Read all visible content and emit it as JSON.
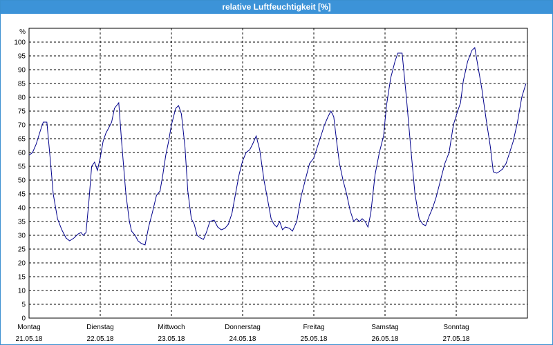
{
  "window": {
    "title": "relative Luftfeuchtigkeit [%]"
  },
  "colors": {
    "title_bar": "#3c93d8",
    "series_line": "#00008b",
    "grid": "#000000"
  },
  "chart_data": {
    "type": "line",
    "title": "relative Luftfeuchtigkeit [%]",
    "ylabel": "%",
    "xlabel": "",
    "ylim": [
      0,
      105
    ],
    "yticks": [
      0,
      5,
      10,
      15,
      20,
      25,
      30,
      35,
      40,
      45,
      50,
      55,
      60,
      65,
      70,
      75,
      80,
      85,
      90,
      95,
      100
    ],
    "xlim": [
      0,
      7.0
    ],
    "grid": true,
    "x_unit": "days since Montag 21.05.18 00:00",
    "day_labels": [
      {
        "x": 0,
        "day": "Montag",
        "date": "21.05.18"
      },
      {
        "x": 1,
        "day": "Dienstag",
        "date": "22.05.18"
      },
      {
        "x": 2,
        "day": "Mittwoch",
        "date": "23.05.18"
      },
      {
        "x": 3,
        "day": "Donnerstag",
        "date": "24.05.18"
      },
      {
        "x": 4,
        "day": "Freitag",
        "date": "25.05.18"
      },
      {
        "x": 5,
        "day": "Samstag",
        "date": "26.05.18"
      },
      {
        "x": 6,
        "day": "Sonntag",
        "date": "27.05.18"
      }
    ],
    "series": [
      {
        "points": [
          [
            0.0,
            59
          ],
          [
            0.05,
            60
          ],
          [
            0.1,
            63
          ],
          [
            0.16,
            68
          ],
          [
            0.2,
            71
          ],
          [
            0.25,
            71
          ],
          [
            0.3,
            57
          ],
          [
            0.34,
            45
          ],
          [
            0.4,
            36
          ],
          [
            0.46,
            32
          ],
          [
            0.52,
            29
          ],
          [
            0.57,
            28
          ],
          [
            0.63,
            29
          ],
          [
            0.69,
            30.5
          ],
          [
            0.73,
            31
          ],
          [
            0.76,
            30
          ],
          [
            0.8,
            31
          ],
          [
            0.84,
            42
          ],
          [
            0.88,
            55
          ],
          [
            0.92,
            56.5
          ],
          [
            0.96,
            53.5
          ],
          [
            1.0,
            58
          ],
          [
            1.04,
            64
          ],
          [
            1.08,
            67
          ],
          [
            1.12,
            69
          ],
          [
            1.16,
            71
          ],
          [
            1.2,
            76
          ],
          [
            1.26,
            78
          ],
          [
            1.3,
            64
          ],
          [
            1.36,
            45
          ],
          [
            1.41,
            35
          ],
          [
            1.44,
            31.5
          ],
          [
            1.49,
            30
          ],
          [
            1.53,
            28
          ],
          [
            1.58,
            27
          ],
          [
            1.63,
            26.5
          ],
          [
            1.68,
            33
          ],
          [
            1.73,
            38
          ],
          [
            1.79,
            44.5
          ],
          [
            1.84,
            46
          ],
          [
            1.88,
            52
          ],
          [
            1.92,
            59
          ],
          [
            1.96,
            64
          ],
          [
            2.0,
            70
          ],
          [
            2.06,
            76
          ],
          [
            2.1,
            77
          ],
          [
            2.14,
            74
          ],
          [
            2.19,
            62
          ],
          [
            2.23,
            46
          ],
          [
            2.28,
            36
          ],
          [
            2.32,
            34
          ],
          [
            2.36,
            30
          ],
          [
            2.41,
            29
          ],
          [
            2.45,
            28.5
          ],
          [
            2.49,
            31
          ],
          [
            2.54,
            35
          ],
          [
            2.6,
            35.5
          ],
          [
            2.65,
            33
          ],
          [
            2.7,
            32
          ],
          [
            2.75,
            32.5
          ],
          [
            2.8,
            34
          ],
          [
            2.85,
            38
          ],
          [
            2.9,
            45
          ],
          [
            2.95,
            52
          ],
          [
            3.0,
            57
          ],
          [
            3.05,
            60
          ],
          [
            3.1,
            61
          ],
          [
            3.14,
            63
          ],
          [
            3.19,
            66
          ],
          [
            3.24,
            61
          ],
          [
            3.3,
            50
          ],
          [
            3.35,
            43
          ],
          [
            3.4,
            36
          ],
          [
            3.44,
            34
          ],
          [
            3.48,
            33
          ],
          [
            3.52,
            35
          ],
          [
            3.56,
            32
          ],
          [
            3.6,
            33
          ],
          [
            3.66,
            32.5
          ],
          [
            3.7,
            31.5
          ],
          [
            3.76,
            35
          ],
          [
            3.82,
            44
          ],
          [
            3.88,
            50
          ],
          [
            3.94,
            56
          ],
          [
            4.0,
            58
          ],
          [
            4.05,
            62
          ],
          [
            4.1,
            66
          ],
          [
            4.15,
            70
          ],
          [
            4.2,
            73
          ],
          [
            4.24,
            75
          ],
          [
            4.28,
            73
          ],
          [
            4.32,
            64
          ],
          [
            4.36,
            56
          ],
          [
            4.41,
            50
          ],
          [
            4.46,
            45
          ],
          [
            4.51,
            39
          ],
          [
            4.56,
            35
          ],
          [
            4.6,
            36
          ],
          [
            4.64,
            35
          ],
          [
            4.68,
            36
          ],
          [
            4.72,
            35
          ],
          [
            4.76,
            33
          ],
          [
            4.8,
            38
          ],
          [
            4.86,
            52
          ],
          [
            4.92,
            60
          ],
          [
            4.98,
            66
          ],
          [
            5.02,
            77
          ],
          [
            5.08,
            87
          ],
          [
            5.14,
            93
          ],
          [
            5.18,
            96
          ],
          [
            5.24,
            96
          ],
          [
            5.3,
            80
          ],
          [
            5.36,
            62
          ],
          [
            5.42,
            45
          ],
          [
            5.48,
            36
          ],
          [
            5.53,
            34
          ],
          [
            5.57,
            33.5
          ],
          [
            5.62,
            37
          ],
          [
            5.67,
            40
          ],
          [
            5.72,
            44
          ],
          [
            5.78,
            50
          ],
          [
            5.84,
            56
          ],
          [
            5.9,
            60
          ],
          [
            5.96,
            70
          ],
          [
            6.02,
            75
          ],
          [
            6.06,
            78
          ],
          [
            6.1,
            86
          ],
          [
            6.16,
            93
          ],
          [
            6.22,
            97
          ],
          [
            6.26,
            98
          ],
          [
            6.3,
            92
          ],
          [
            6.36,
            83
          ],
          [
            6.42,
            72
          ],
          [
            6.48,
            62
          ],
          [
            6.52,
            53
          ],
          [
            6.57,
            52.5
          ],
          [
            6.6,
            53
          ],
          [
            6.65,
            54
          ],
          [
            6.7,
            56
          ],
          [
            6.75,
            60
          ],
          [
            6.8,
            64
          ],
          [
            6.86,
            71
          ],
          [
            6.92,
            80
          ],
          [
            6.98,
            85
          ]
        ]
      }
    ]
  }
}
